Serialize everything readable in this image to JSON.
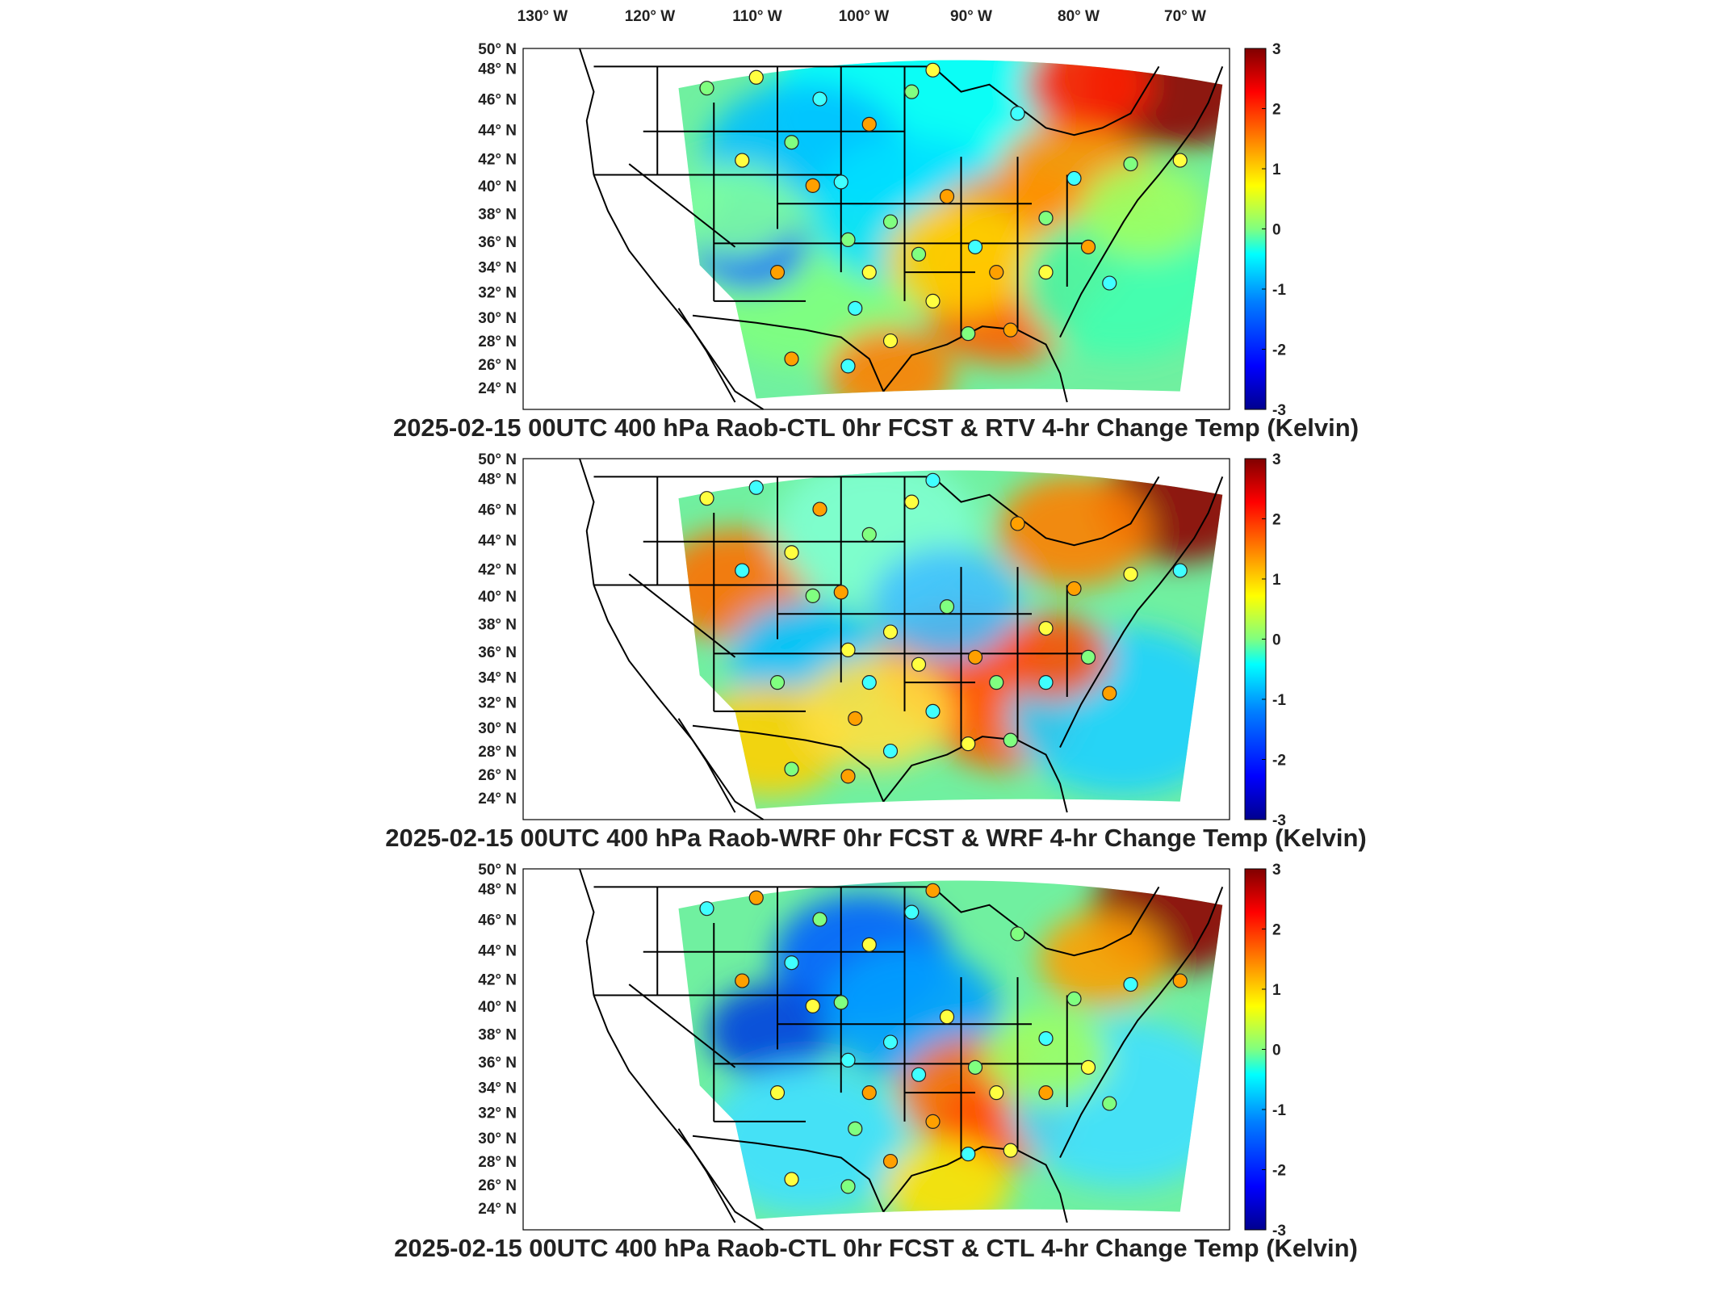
{
  "figure": {
    "longitude_labels": [
      "130° W",
      "120° W",
      "110° W",
      "100° W",
      "90° W",
      "80° W",
      "70° W"
    ],
    "latitude_labels": [
      "50° N",
      "48° N",
      "46° N",
      "44° N",
      "42° N",
      "40° N",
      "38° N",
      "36° N",
      "34° N",
      "32° N",
      "30° N",
      "28° N",
      "26° N",
      "24° N"
    ],
    "colorbar": {
      "ticks": [
        "3",
        "2",
        "1",
        "0",
        "-1",
        "-2",
        "-3"
      ],
      "range": [
        -3,
        3
      ],
      "colors": [
        "#00008f",
        "#0000ff",
        "#0080ff",
        "#00ffff",
        "#80ff80",
        "#ffff00",
        "#ff8000",
        "#ff0000",
        "#800000"
      ]
    },
    "panels": [
      {
        "title": "2025-02-15 00UTC 400 hPa Raob-CTL 0hr FCST & RTV 4-hr Change Temp (Kelvin)",
        "map_data": {
          "field": "RTV 4-hr change temperature (shaded) with Raob-CTL 0hr FCST station differences (circles)",
          "units": "Kelvin",
          "pressure_level": "400 hPa",
          "valid_time": "2025-02-15 00UTC"
        }
      },
      {
        "title": "2025-02-15 00UTC 400 hPa Raob-WRF 0hr FCST & WRF 4-hr Change Temp (Kelvin)",
        "map_data": {
          "field": "WRF 4-hr change temperature (shaded) with Raob-WRF 0hr FCST station differences (circles)",
          "units": "Kelvin",
          "pressure_level": "400 hPa",
          "valid_time": "2025-02-15 00UTC"
        }
      },
      {
        "title": "2025-02-15 00UTC 400 hPa Raob-CTL 0hr FCST & CTL 4-hr Change Temp (Kelvin)",
        "map_data": {
          "field": "CTL 4-hr change temperature (shaded) with Raob-CTL 0hr FCST station differences (circles)",
          "units": "Kelvin",
          "pressure_level": "400 hPa",
          "valid_time": "2025-02-15 00UTC"
        }
      }
    ]
  }
}
